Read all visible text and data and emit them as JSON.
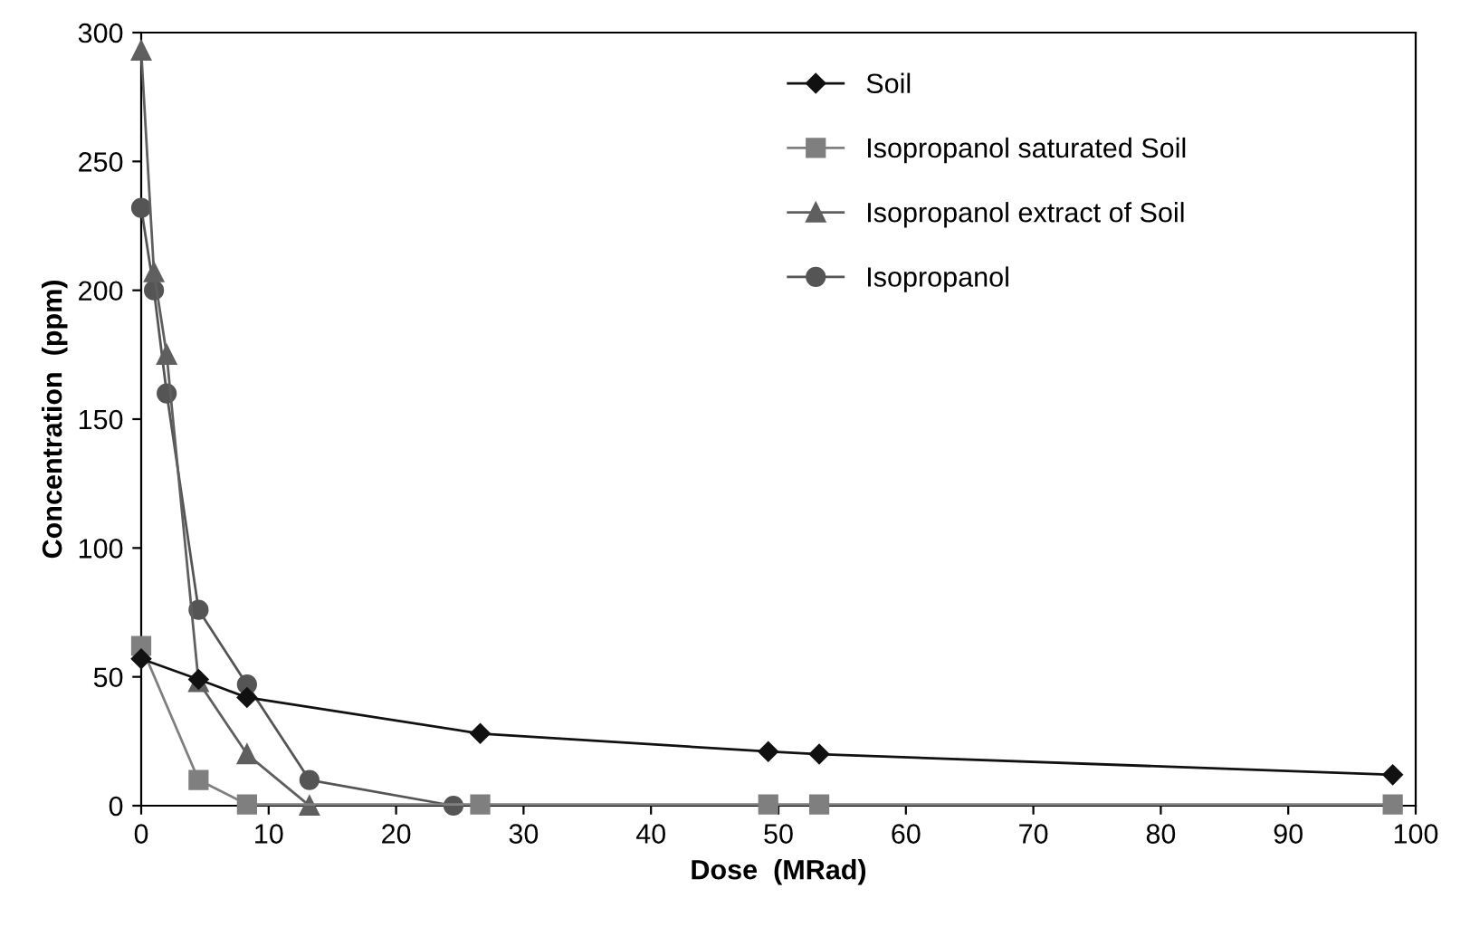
{
  "chart_data": {
    "type": "line",
    "xlabel": "Dose  (MRad)",
    "ylabel": "Concentration  (ppm)",
    "xlim": [
      0,
      100
    ],
    "ylim": [
      0,
      300
    ],
    "xticks": [
      0,
      10,
      20,
      30,
      40,
      50,
      60,
      70,
      80,
      90,
      100
    ],
    "yticks": [
      0,
      50,
      100,
      150,
      200,
      250,
      300
    ],
    "grid": false,
    "legend": "top right",
    "series": [
      {
        "name": "Soil",
        "color": "#111111",
        "marker": "diamond",
        "x": [
          0,
          4.5,
          8.3,
          26.6,
          49.2,
          53.2,
          98.2
        ],
        "values": [
          57,
          49,
          42,
          28,
          21,
          20,
          12
        ]
      },
      {
        "name": "Isopropanol saturated Soil",
        "color": "#7f7f7f",
        "marker": "square",
        "x": [
          0,
          4.5,
          8.3,
          26.6,
          49.2,
          53.2,
          98.2
        ],
        "values": [
          62,
          10,
          0.5,
          0.5,
          0.5,
          0.5,
          0.5
        ]
      },
      {
        "name": "Isopropanol extract of Soil",
        "color": "#5f5f5f",
        "marker": "triangle",
        "x": [
          0,
          1,
          2,
          4.5,
          8.3,
          13.2
        ],
        "values": [
          293,
          207,
          175,
          48,
          20,
          0
        ]
      },
      {
        "name": "Isopropanol",
        "color": "#555555",
        "marker": "circle",
        "x": [
          0,
          1,
          2,
          4.5,
          8.3,
          13.2,
          24.5
        ],
        "values": [
          232,
          200,
          160,
          76,
          47,
          10,
          0
        ]
      }
    ]
  }
}
